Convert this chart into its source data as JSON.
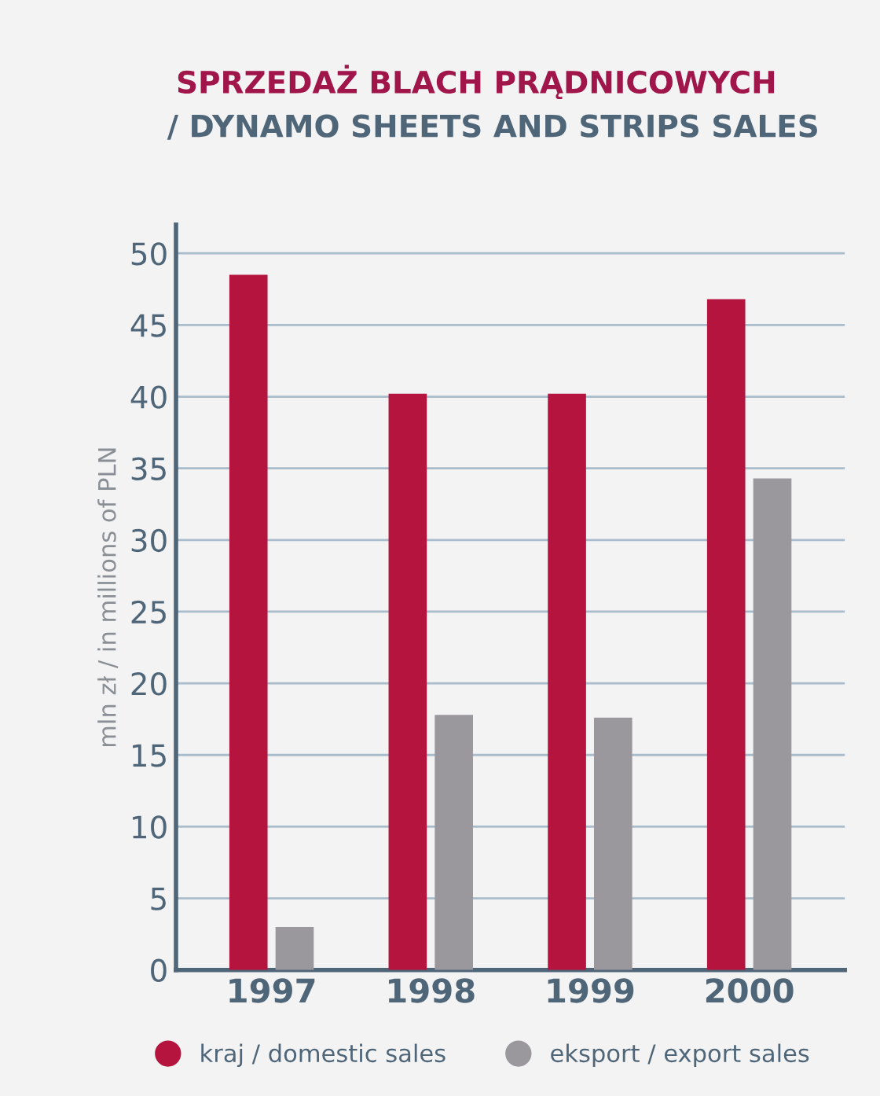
{
  "chart_data": {
    "type": "bar",
    "title": "SPRZEDAŻ BLACH PRĄDNICOWYCH",
    "subtitle": "/ DYNAMO SHEETS AND STRIPS SALES",
    "ylabel": "mln zł / in millions of PLN",
    "categories": [
      "1997",
      "1998",
      "1999",
      "2000"
    ],
    "series": [
      {
        "name": "kraj / domestic sales",
        "color": "#b5143f",
        "values": [
          48.5,
          40.2,
          40.2,
          46.8
        ]
      },
      {
        "name": "eksport / export sales",
        "color": "#9a979d",
        "values": [
          3.0,
          17.8,
          17.6,
          34.3
        ]
      }
    ],
    "ylim": [
      0,
      52
    ],
    "yticks": [
      0,
      5,
      10,
      15,
      20,
      25,
      30,
      35,
      40,
      45,
      50
    ],
    "grid": "y",
    "legend": "bottom"
  }
}
